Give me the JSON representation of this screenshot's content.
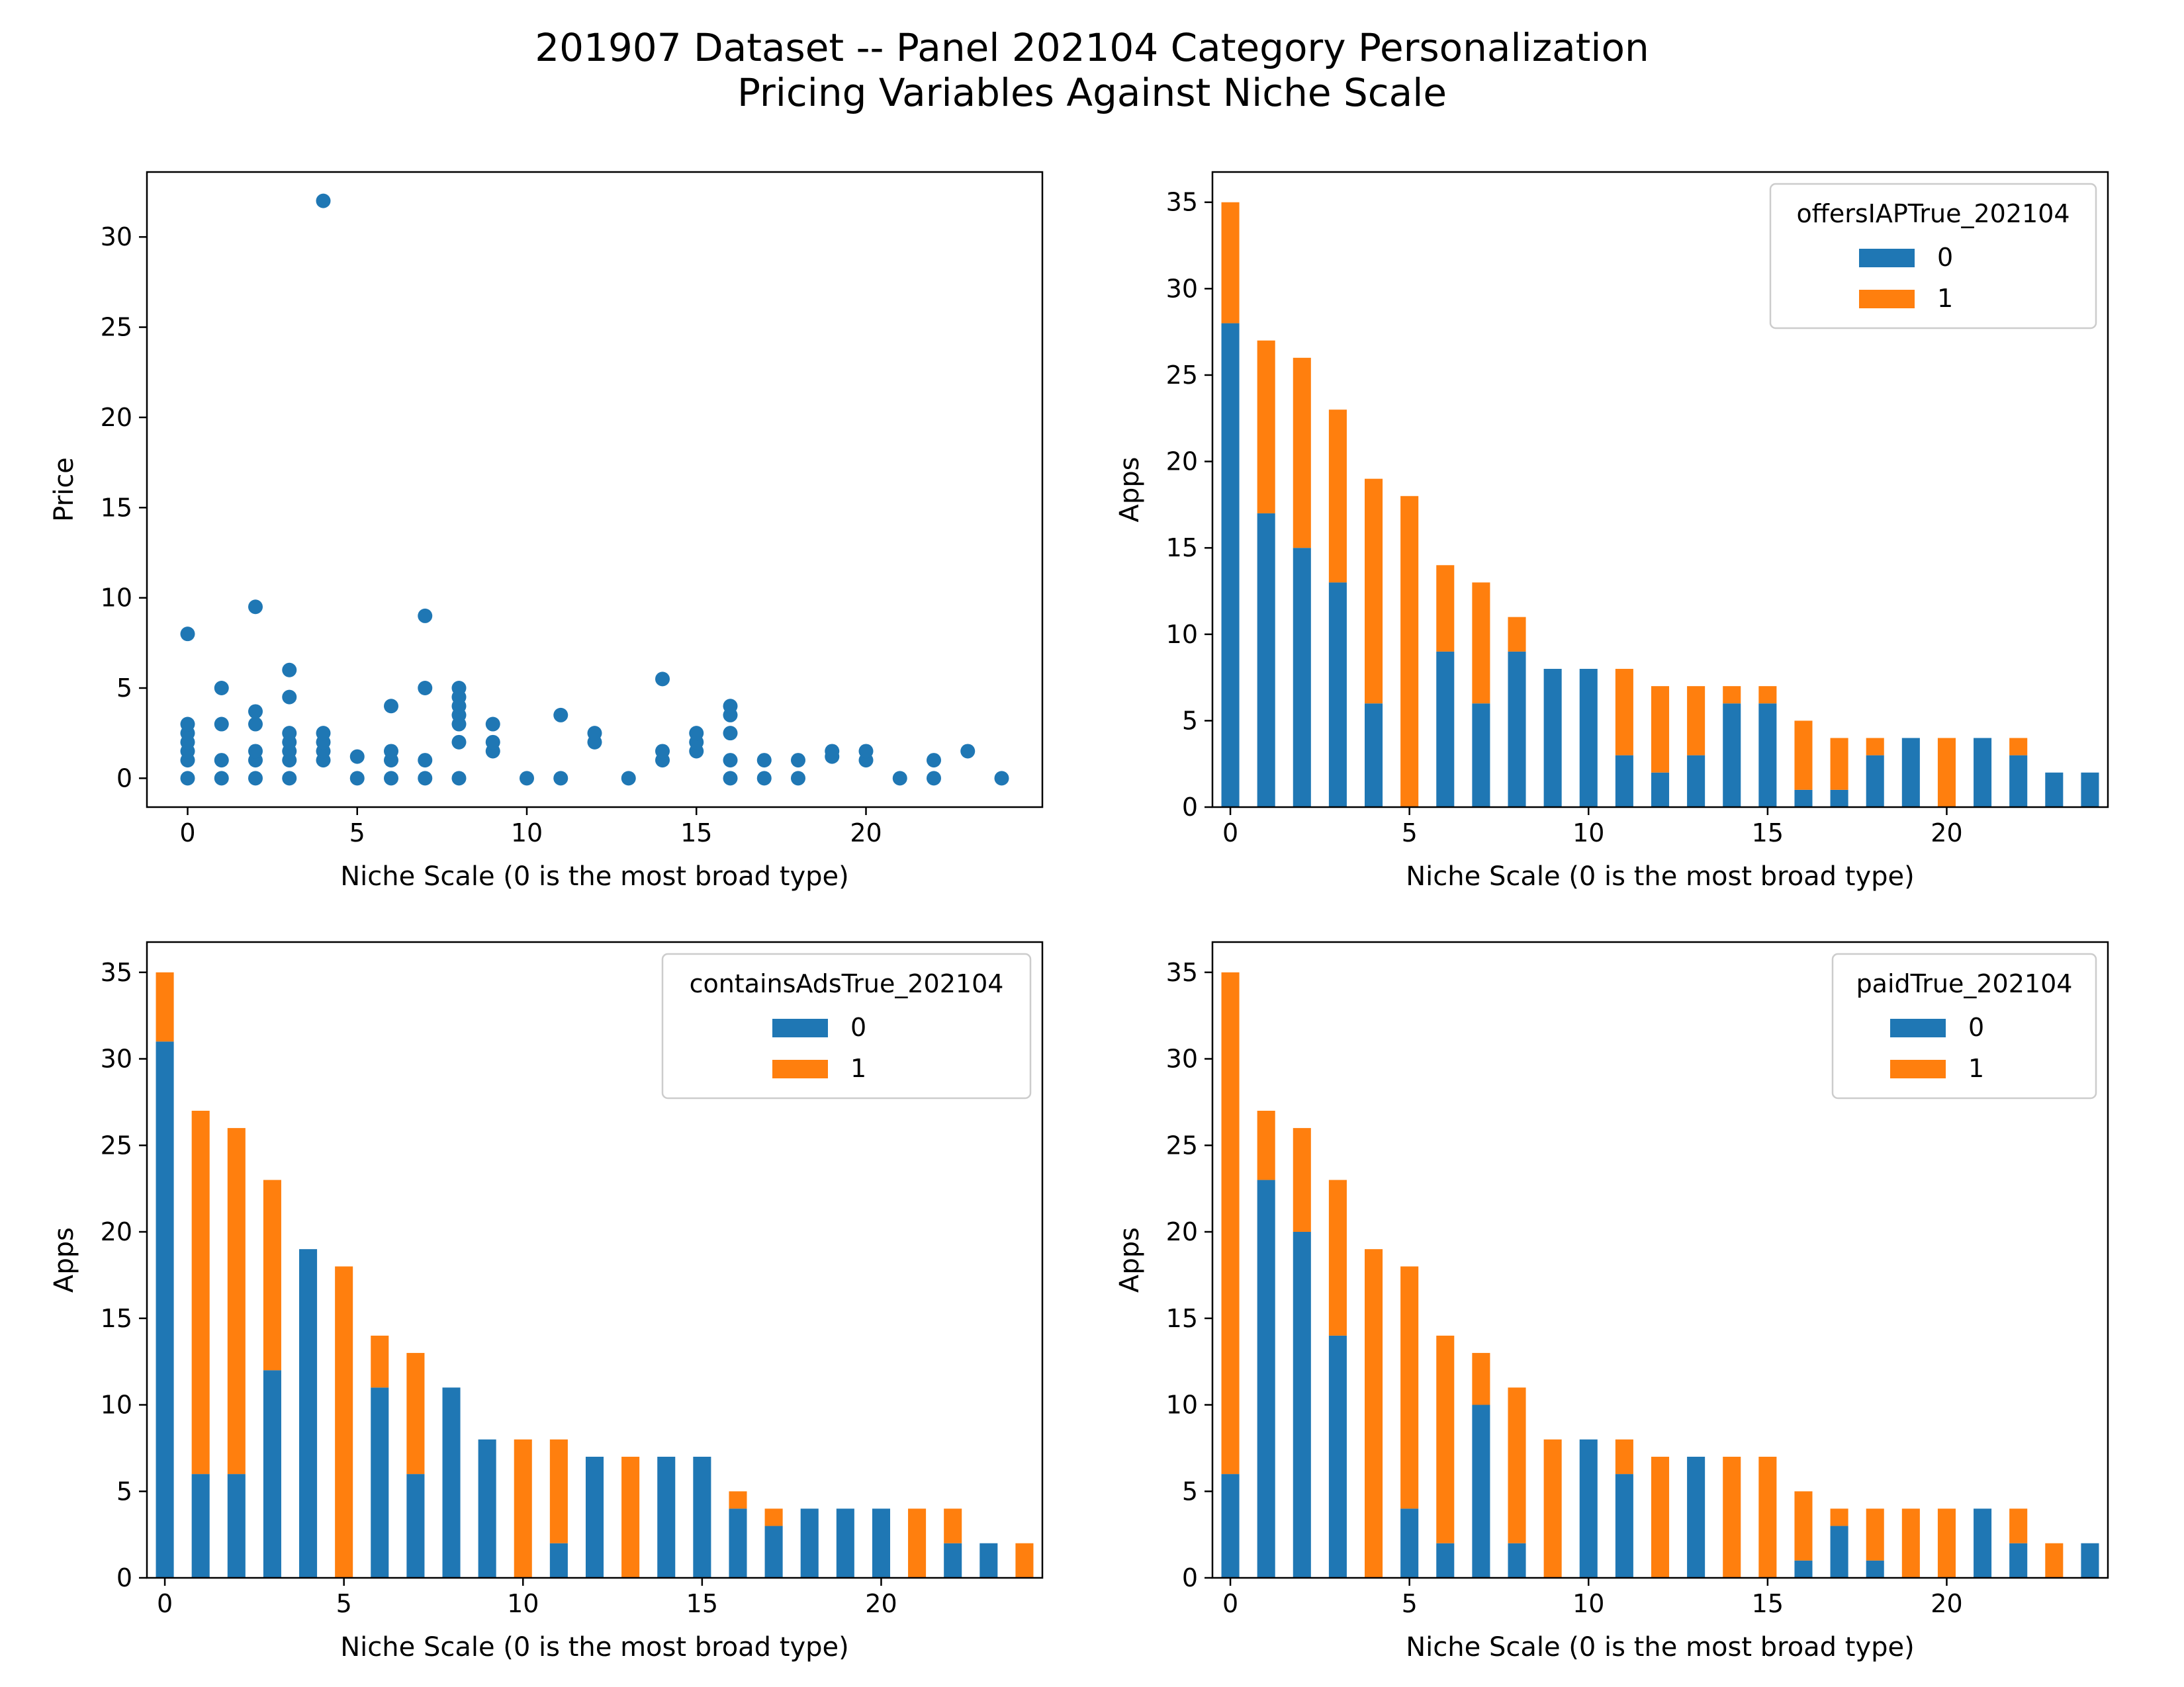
{
  "figure": {
    "title_line1": "201907 Dataset -- Panel 202104 Category Personalization",
    "title_line2": "Pricing Variables Against Niche Scale"
  },
  "colors": {
    "series0": "#1f77b4",
    "series1": "#ff7f0e"
  },
  "chart_data": [
    {
      "type": "scatter",
      "xlabel": "Niche Scale (0 is the most broad type)",
      "ylabel": "Price",
      "xlim": [
        -1.2,
        25.2
      ],
      "ylim": [
        -1.6,
        33.6
      ],
      "xticks": [
        0,
        5,
        10,
        15,
        20
      ],
      "yticks": [
        0,
        5,
        10,
        15,
        20,
        25,
        30
      ],
      "points": [
        [
          0,
          0
        ],
        [
          0,
          1
        ],
        [
          0,
          1.5
        ],
        [
          0,
          2
        ],
        [
          0,
          2.5
        ],
        [
          0,
          3
        ],
        [
          0,
          8
        ],
        [
          1,
          0
        ],
        [
          1,
          1
        ],
        [
          1,
          3
        ],
        [
          1,
          5
        ],
        [
          2,
          0
        ],
        [
          2,
          1
        ],
        [
          2,
          1.5
        ],
        [
          2,
          3
        ],
        [
          2,
          3.7
        ],
        [
          2,
          9.5
        ],
        [
          3,
          0
        ],
        [
          3,
          1
        ],
        [
          3,
          1.5
        ],
        [
          3,
          2
        ],
        [
          3,
          2.5
        ],
        [
          3,
          4.5
        ],
        [
          3,
          6
        ],
        [
          4,
          1
        ],
        [
          4,
          1.5
        ],
        [
          4,
          2
        ],
        [
          4,
          2.5
        ],
        [
          4,
          32
        ],
        [
          5,
          0
        ],
        [
          5,
          1.2
        ],
        [
          6,
          0
        ],
        [
          6,
          1
        ],
        [
          6,
          1.5
        ],
        [
          6,
          4
        ],
        [
          7,
          0
        ],
        [
          7,
          1
        ],
        [
          7,
          5
        ],
        [
          7,
          9
        ],
        [
          8,
          0
        ],
        [
          8,
          2
        ],
        [
          8,
          3
        ],
        [
          8,
          3.5
        ],
        [
          8,
          4
        ],
        [
          8,
          4.5
        ],
        [
          8,
          5
        ],
        [
          9,
          1.5
        ],
        [
          9,
          2
        ],
        [
          9,
          3
        ],
        [
          10,
          0
        ],
        [
          11,
          0
        ],
        [
          11,
          3.5
        ],
        [
          12,
          2
        ],
        [
          12,
          2.5
        ],
        [
          13,
          0
        ],
        [
          14,
          1
        ],
        [
          14,
          1.5
        ],
        [
          14,
          5.5
        ],
        [
          15,
          1.5
        ],
        [
          15,
          2
        ],
        [
          15,
          2.5
        ],
        [
          16,
          0
        ],
        [
          16,
          1
        ],
        [
          16,
          2.5
        ],
        [
          16,
          3.5
        ],
        [
          16,
          4
        ],
        [
          17,
          0
        ],
        [
          17,
          1
        ],
        [
          18,
          0
        ],
        [
          18,
          1
        ],
        [
          19,
          1.2
        ],
        [
          19,
          1.5
        ],
        [
          20,
          1
        ],
        [
          20,
          1.5
        ],
        [
          21,
          0
        ],
        [
          22,
          0
        ],
        [
          22,
          1
        ],
        [
          23,
          1.5
        ],
        [
          24,
          0
        ]
      ]
    },
    {
      "type": "bar",
      "stacked": true,
      "xlabel": "Niche Scale (0 is the most broad type)",
      "ylabel": "Apps",
      "legend_title": "offersIAPTrue_202104",
      "legend_position": "upper right",
      "xlim": [
        -0.5,
        24.5
      ],
      "ylim": [
        0,
        36.75
      ],
      "xticks": [
        0,
        5,
        10,
        15,
        20
      ],
      "yticks": [
        0,
        5,
        10,
        15,
        20,
        25,
        30,
        35
      ],
      "categories": [
        0,
        1,
        2,
        3,
        4,
        5,
        6,
        7,
        8,
        9,
        10,
        11,
        12,
        13,
        14,
        15,
        16,
        17,
        18,
        19,
        20,
        21,
        22,
        23,
        24
      ],
      "series": [
        {
          "name": "0",
          "values": [
            28,
            17,
            15,
            13,
            6,
            0,
            9,
            6,
            9,
            8,
            8,
            3,
            2,
            3,
            6,
            6,
            1,
            1,
            3,
            4,
            0,
            4,
            3,
            2,
            2
          ]
        },
        {
          "name": "1",
          "values": [
            7,
            10,
            11,
            10,
            13,
            18,
            5,
            7,
            2,
            0,
            0,
            5,
            5,
            4,
            1,
            1,
            4,
            3,
            1,
            0,
            4,
            0,
            1,
            0,
            0
          ]
        }
      ]
    },
    {
      "type": "bar",
      "stacked": true,
      "xlabel": "Niche Scale (0 is the most broad type)",
      "ylabel": "Apps",
      "legend_title": "containsAdsTrue_202104",
      "legend_position": "upper right",
      "xlim": [
        -0.5,
        24.5
      ],
      "ylim": [
        0,
        36.75
      ],
      "xticks": [
        0,
        5,
        10,
        15,
        20
      ],
      "yticks": [
        0,
        5,
        10,
        15,
        20,
        25,
        30,
        35
      ],
      "categories": [
        0,
        1,
        2,
        3,
        4,
        5,
        6,
        7,
        8,
        9,
        10,
        11,
        12,
        13,
        14,
        15,
        16,
        17,
        18,
        19,
        20,
        21,
        22,
        23,
        24
      ],
      "series": [
        {
          "name": "0",
          "values": [
            31,
            6,
            6,
            12,
            19,
            0,
            11,
            6,
            11,
            8,
            0,
            2,
            7,
            0,
            7,
            7,
            4,
            3,
            4,
            4,
            4,
            0,
            2,
            2,
            0
          ]
        },
        {
          "name": "1",
          "values": [
            4,
            21,
            20,
            11,
            0,
            18,
            3,
            7,
            0,
            0,
            8,
            6,
            0,
            7,
            0,
            0,
            1,
            1,
            0,
            0,
            0,
            4,
            2,
            0,
            2
          ]
        }
      ]
    },
    {
      "type": "bar",
      "stacked": true,
      "xlabel": "Niche Scale (0 is the most broad type)",
      "ylabel": "Apps",
      "legend_title": "paidTrue_202104",
      "legend_position": "upper right",
      "xlim": [
        -0.5,
        24.5
      ],
      "ylim": [
        0,
        36.75
      ],
      "xticks": [
        0,
        5,
        10,
        15,
        20
      ],
      "yticks": [
        0,
        5,
        10,
        15,
        20,
        25,
        30,
        35
      ],
      "categories": [
        0,
        1,
        2,
        3,
        4,
        5,
        6,
        7,
        8,
        9,
        10,
        11,
        12,
        13,
        14,
        15,
        16,
        17,
        18,
        19,
        20,
        21,
        22,
        23,
        24
      ],
      "series": [
        {
          "name": "0",
          "values": [
            6,
            23,
            20,
            14,
            0,
            4,
            2,
            10,
            2,
            0,
            8,
            6,
            0,
            7,
            0,
            0,
            1,
            3,
            1,
            0,
            0,
            4,
            2,
            0,
            2
          ]
        },
        {
          "name": "1",
          "values": [
            29,
            4,
            6,
            9,
            19,
            14,
            12,
            3,
            9,
            8,
            0,
            2,
            7,
            0,
            7,
            7,
            4,
            1,
            3,
            4,
            4,
            0,
            2,
            2,
            0
          ]
        }
      ]
    }
  ]
}
